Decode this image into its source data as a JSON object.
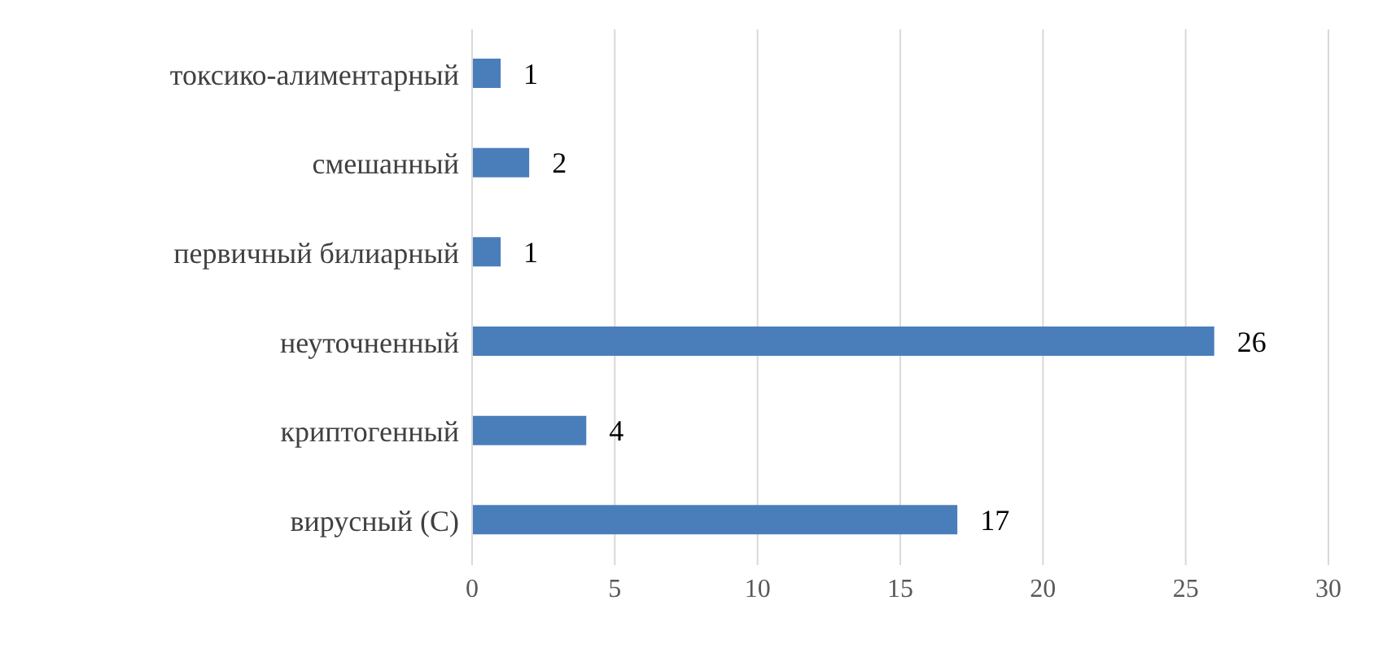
{
  "chart_data": {
    "type": "bar",
    "orientation": "horizontal",
    "categories": [
      "токсико-алиментарный",
      "смешанный",
      "первичный билиарный",
      "неуточненный",
      "криптогенный",
      "вирусный (С)"
    ],
    "values": [
      1,
      2,
      1,
      26,
      4,
      17
    ],
    "color": "#4a7ebb",
    "xlim": [
      0,
      30
    ],
    "xticks": [
      0,
      5,
      10,
      15,
      20,
      25,
      30
    ],
    "grid": "x",
    "data_labels": true
  }
}
